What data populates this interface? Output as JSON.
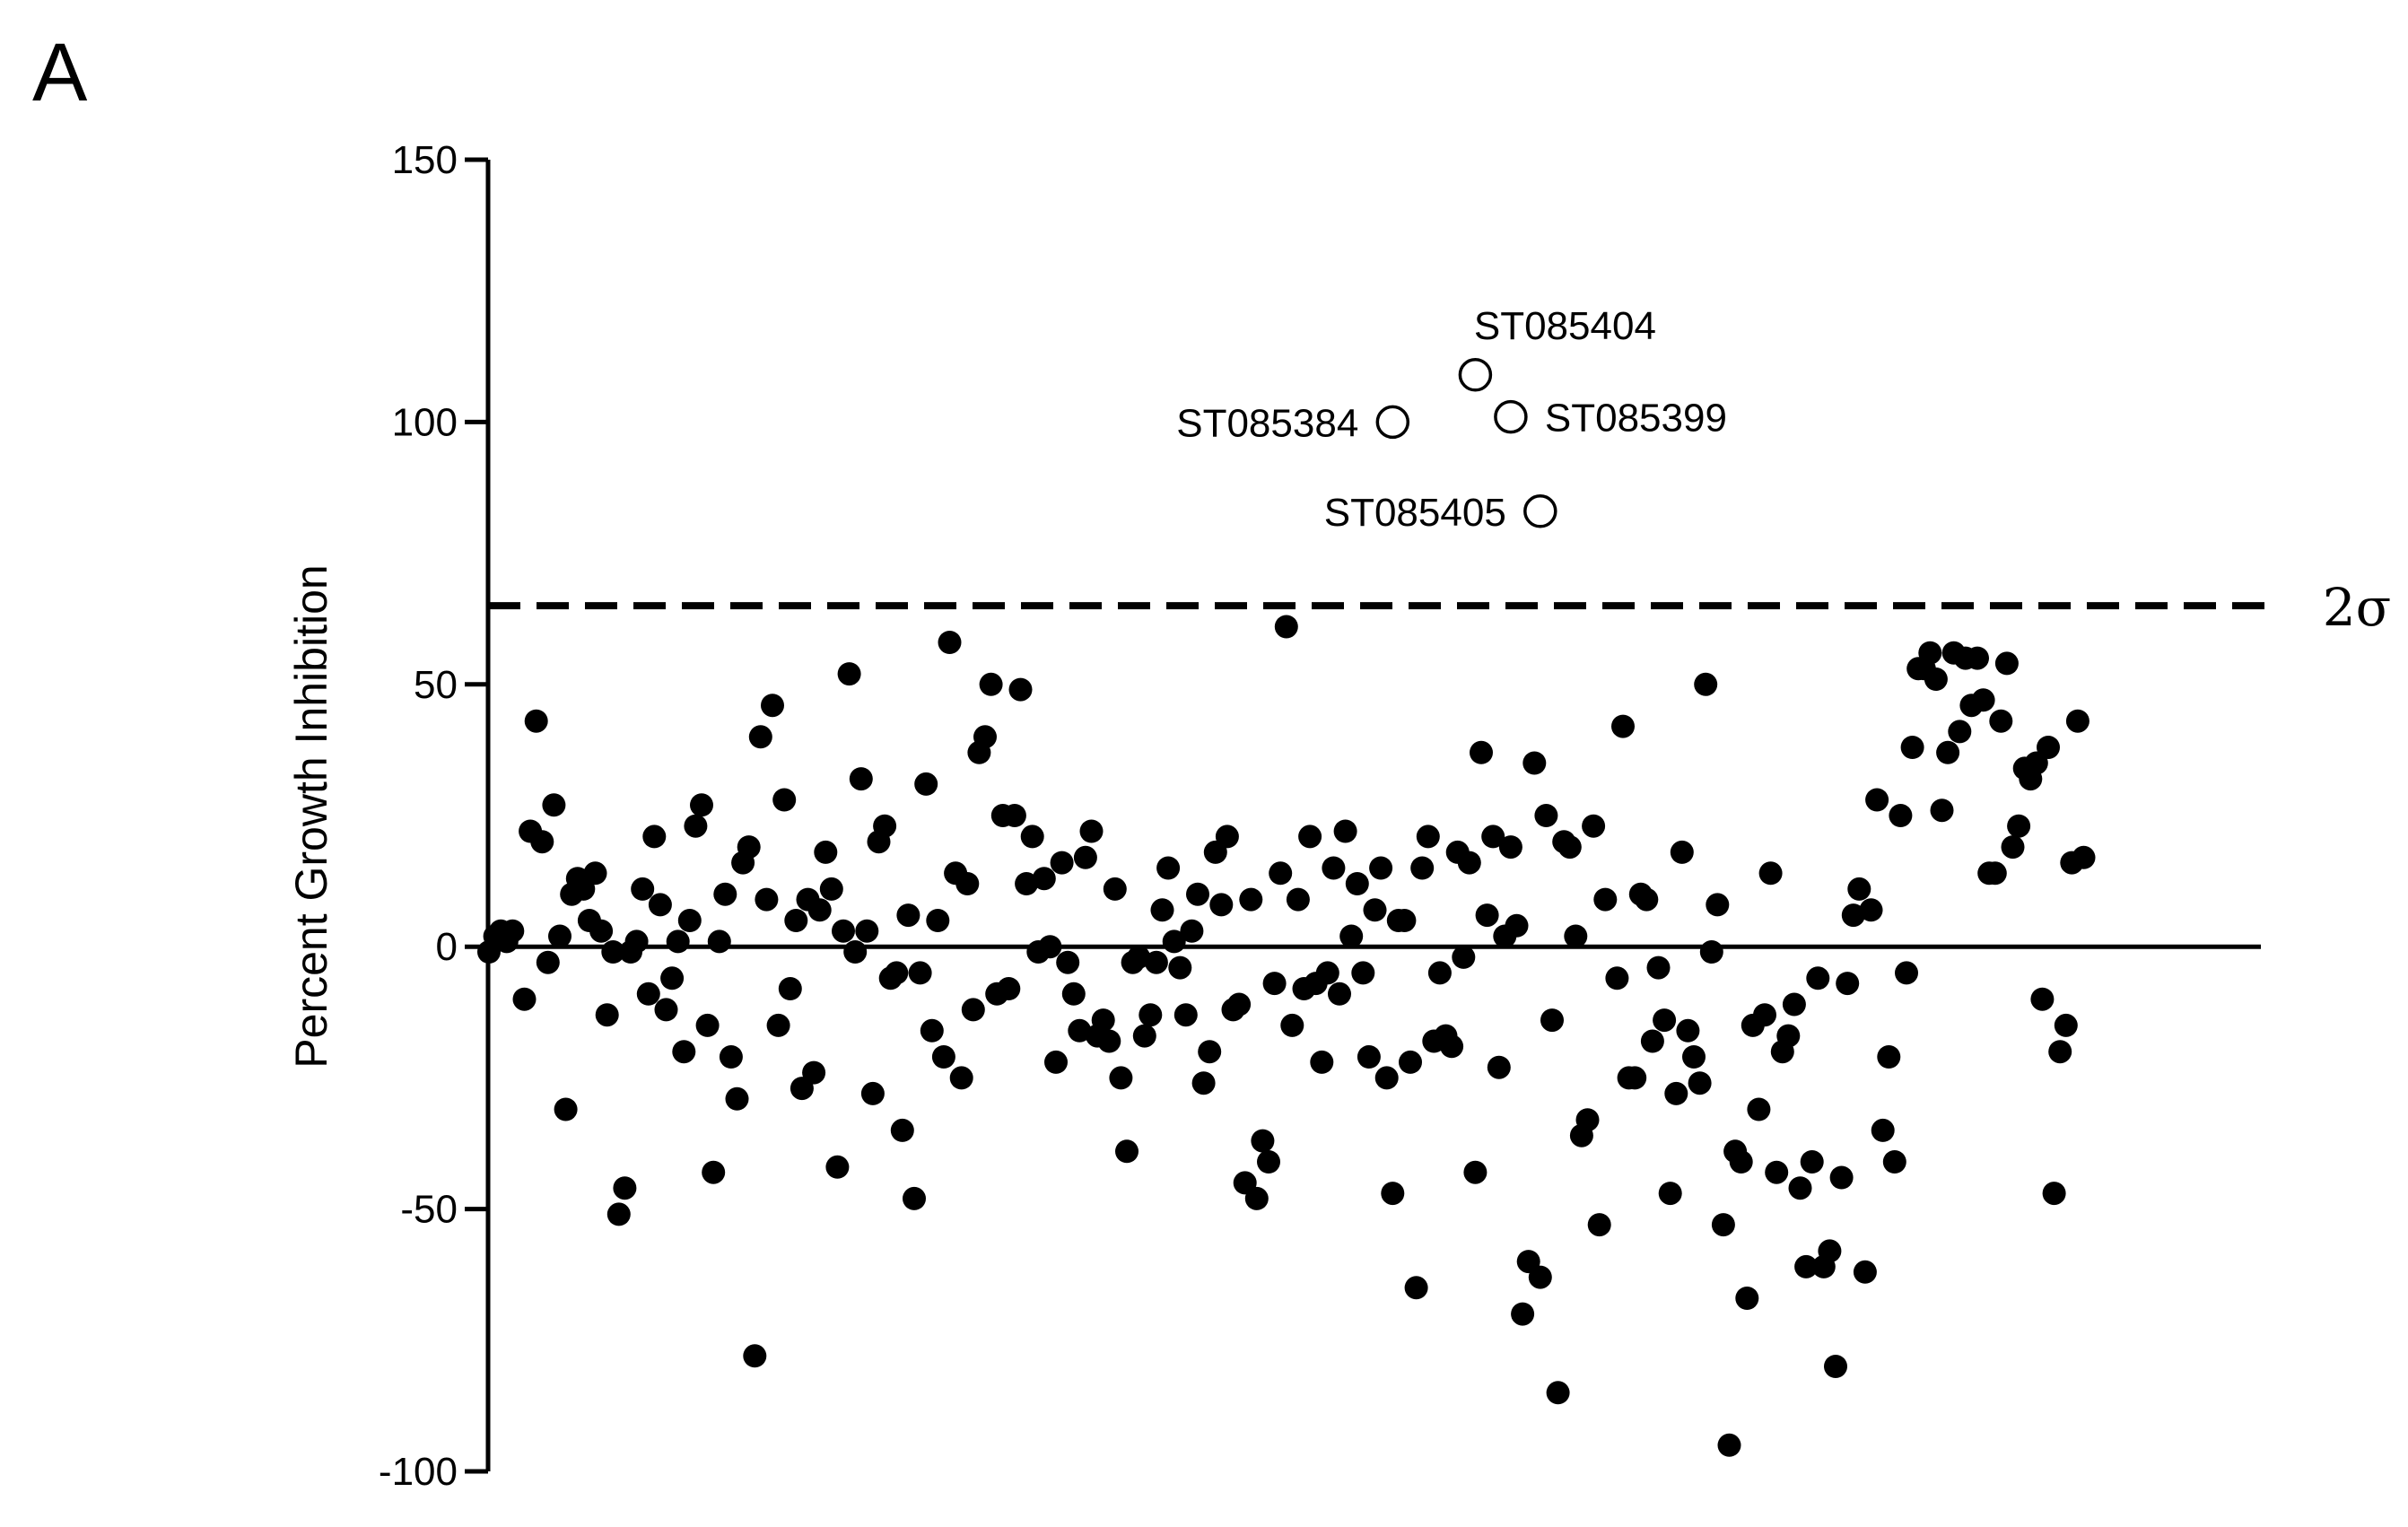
{
  "panel_label": "A",
  "chart_data": {
    "type": "scatter",
    "title": "",
    "xlabel": "",
    "ylabel": "Percent Growth Inhibition",
    "ylim": [
      -100,
      150
    ],
    "yticks": [
      -100,
      -50,
      0,
      50,
      100,
      150
    ],
    "ytick_labels": [
      "-100",
      "-50",
      "0",
      "50",
      "100",
      "150"
    ],
    "x_range": [
      0,
      300
    ],
    "grid": false,
    "legend": "none",
    "colors": {
      "points": "#000000",
      "axis": "#000000",
      "highlight_fill": "#ffffff"
    },
    "reference_lines": [
      {
        "y": 0,
        "style": "solid",
        "label": ""
      },
      {
        "y": 65,
        "style": "dashed",
        "label": "2σ"
      }
    ],
    "series": [
      {
        "name": "",
        "marker": "filled-circle",
        "points": [
          [
            0,
            -1
          ],
          [
            1,
            2
          ],
          [
            2,
            3
          ],
          [
            3,
            1
          ],
          [
            4,
            3
          ],
          [
            6,
            -10
          ],
          [
            7,
            22
          ],
          [
            8,
            43
          ],
          [
            9,
            20
          ],
          [
            10,
            -3
          ],
          [
            11,
            27
          ],
          [
            12,
            2
          ],
          [
            13,
            -31
          ],
          [
            14,
            10
          ],
          [
            15,
            13
          ],
          [
            16,
            11
          ],
          [
            17,
            5
          ],
          [
            18,
            14
          ],
          [
            19,
            3
          ],
          [
            20,
            -13
          ],
          [
            21,
            -1
          ],
          [
            22,
            -51
          ],
          [
            23,
            -46
          ],
          [
            24,
            -1
          ],
          [
            25,
            1
          ],
          [
            26,
            11
          ],
          [
            27,
            -9
          ],
          [
            28,
            21
          ],
          [
            29,
            8
          ],
          [
            30,
            -12
          ],
          [
            31,
            -6
          ],
          [
            32,
            1
          ],
          [
            33,
            -20
          ],
          [
            34,
            5
          ],
          [
            35,
            23
          ],
          [
            36,
            27
          ],
          [
            37,
            -15
          ],
          [
            38,
            -43
          ],
          [
            39,
            1
          ],
          [
            40,
            10
          ],
          [
            41,
            -21
          ],
          [
            42,
            -29
          ],
          [
            43,
            16
          ],
          [
            44,
            19
          ],
          [
            45,
            -78
          ],
          [
            46,
            40
          ],
          [
            47,
            9
          ],
          [
            48,
            46
          ],
          [
            49,
            -15
          ],
          [
            50,
            28
          ],
          [
            51,
            -8
          ],
          [
            52,
            5
          ],
          [
            53,
            -27
          ],
          [
            54,
            9
          ],
          [
            55,
            -24
          ],
          [
            56,
            7
          ],
          [
            57,
            18
          ],
          [
            58,
            11
          ],
          [
            59,
            -42
          ],
          [
            60,
            3
          ],
          [
            61,
            52
          ],
          [
            62,
            -1
          ],
          [
            63,
            32
          ],
          [
            64,
            3
          ],
          [
            65,
            -28
          ],
          [
            66,
            20
          ],
          [
            67,
            23
          ],
          [
            68,
            -6
          ],
          [
            69,
            -5
          ],
          [
            70,
            -35
          ],
          [
            71,
            6
          ],
          [
            72,
            -48
          ],
          [
            73,
            -5
          ],
          [
            74,
            31
          ],
          [
            75,
            -16
          ],
          [
            76,
            5
          ],
          [
            77,
            -21
          ],
          [
            78,
            58
          ],
          [
            79,
            14
          ],
          [
            80,
            -25
          ],
          [
            81,
            12
          ],
          [
            82,
            -12
          ],
          [
            83,
            37
          ],
          [
            84,
            40
          ],
          [
            85,
            50
          ],
          [
            86,
            -9
          ],
          [
            87,
            25
          ],
          [
            88,
            -8
          ],
          [
            89,
            25
          ],
          [
            90,
            49
          ],
          [
            91,
            12
          ],
          [
            92,
            21
          ],
          [
            93,
            -1
          ],
          [
            94,
            13
          ],
          [
            95,
            0
          ],
          [
            96,
            -22
          ],
          [
            97,
            16
          ],
          [
            98,
            -3
          ],
          [
            99,
            -9
          ],
          [
            100,
            -16
          ],
          [
            101,
            17
          ],
          [
            102,
            22
          ],
          [
            103,
            -17
          ],
          [
            104,
            -14
          ],
          [
            105,
            -18
          ],
          [
            106,
            11
          ],
          [
            107,
            -25
          ],
          [
            108,
            -39
          ],
          [
            109,
            -3
          ],
          [
            110,
            -2
          ],
          [
            111,
            -17
          ],
          [
            112,
            -13
          ],
          [
            113,
            -3
          ],
          [
            114,
            7
          ],
          [
            115,
            15
          ],
          [
            116,
            1
          ],
          [
            117,
            -4
          ],
          [
            118,
            -13
          ],
          [
            119,
            3
          ],
          [
            120,
            10
          ],
          [
            121,
            -26
          ],
          [
            122,
            -20
          ],
          [
            123,
            18
          ],
          [
            124,
            8
          ],
          [
            125,
            21
          ],
          [
            126,
            -12
          ],
          [
            127,
            -11
          ],
          [
            128,
            -45
          ],
          [
            129,
            9
          ],
          [
            130,
            -48
          ],
          [
            131,
            -37
          ],
          [
            132,
            -41
          ],
          [
            133,
            -7
          ],
          [
            134,
            14
          ],
          [
            135,
            61
          ],
          [
            136,
            -15
          ],
          [
            137,
            9
          ],
          [
            138,
            -8
          ],
          [
            139,
            21
          ],
          [
            140,
            -7
          ],
          [
            141,
            -22
          ],
          [
            142,
            -5
          ],
          [
            143,
            15
          ],
          [
            144,
            -9
          ],
          [
            145,
            22
          ],
          [
            146,
            2
          ],
          [
            147,
            12
          ],
          [
            148,
            -5
          ],
          [
            149,
            -21
          ],
          [
            150,
            7
          ],
          [
            151,
            15
          ],
          [
            152,
            -25
          ],
          [
            153,
            -47
          ],
          [
            154,
            5
          ],
          [
            155,
            5
          ],
          [
            156,
            -22
          ],
          [
            157,
            -65
          ],
          [
            158,
            15
          ],
          [
            159,
            21
          ],
          [
            160,
            -18
          ],
          [
            161,
            -5
          ],
          [
            162,
            -17
          ],
          [
            163,
            -19
          ],
          [
            164,
            18
          ],
          [
            165,
            -2
          ],
          [
            166,
            16
          ],
          [
            167,
            -43
          ],
          [
            168,
            37
          ],
          [
            169,
            6
          ],
          [
            170,
            21
          ],
          [
            171,
            -23
          ],
          [
            172,
            2
          ],
          [
            173,
            19
          ],
          [
            174,
            4
          ],
          [
            175,
            -70
          ],
          [
            176,
            -60
          ],
          [
            177,
            35
          ],
          [
            178,
            -63
          ],
          [
            179,
            25
          ],
          [
            180,
            -14
          ],
          [
            181,
            -85
          ],
          [
            182,
            20
          ],
          [
            183,
            19
          ],
          [
            184,
            2
          ],
          [
            185,
            -36
          ],
          [
            186,
            -33
          ],
          [
            187,
            23
          ],
          [
            188,
            -53
          ],
          [
            189,
            9
          ],
          [
            191,
            -6
          ],
          [
            192,
            42
          ],
          [
            193,
            -25
          ],
          [
            194,
            -25
          ],
          [
            195,
            10
          ],
          [
            196,
            9
          ],
          [
            197,
            -18
          ],
          [
            198,
            -4
          ],
          [
            199,
            -14
          ],
          [
            200,
            -47
          ],
          [
            201,
            -28
          ],
          [
            202,
            18
          ],
          [
            203,
            -16
          ],
          [
            204,
            -21
          ],
          [
            205,
            -26
          ],
          [
            206,
            50
          ],
          [
            207,
            -1
          ],
          [
            208,
            8
          ],
          [
            209,
            -53
          ],
          [
            210,
            -95
          ],
          [
            211,
            -39
          ],
          [
            212,
            -41
          ],
          [
            213,
            -67
          ],
          [
            214,
            -15
          ],
          [
            215,
            -31
          ],
          [
            216,
            -13
          ],
          [
            217,
            14
          ],
          [
            218,
            -43
          ],
          [
            219,
            -20
          ],
          [
            220,
            -17
          ],
          [
            221,
            -11
          ],
          [
            222,
            -46
          ],
          [
            223,
            -61
          ],
          [
            224,
            -41
          ],
          [
            225,
            -6
          ],
          [
            226,
            -61
          ],
          [
            227,
            -58
          ],
          [
            228,
            -80
          ],
          [
            229,
            -44
          ],
          [
            230,
            -7
          ],
          [
            231,
            6
          ],
          [
            232,
            11
          ],
          [
            233,
            -62
          ],
          [
            234,
            7
          ],
          [
            235,
            28
          ],
          [
            236,
            -35
          ],
          [
            237,
            -21
          ],
          [
            238,
            -41
          ],
          [
            239,
            25
          ],
          [
            240,
            -5
          ],
          [
            241,
            38
          ],
          [
            242,
            53
          ],
          [
            243,
            53
          ],
          [
            244,
            56
          ],
          [
            245,
            51
          ],
          [
            246,
            26
          ],
          [
            247,
            37
          ],
          [
            248,
            56
          ],
          [
            249,
            41
          ],
          [
            250,
            55
          ],
          [
            251,
            46
          ],
          [
            252,
            55
          ],
          [
            253,
            47
          ],
          [
            254,
            14
          ],
          [
            255,
            14
          ],
          [
            256,
            43
          ],
          [
            257,
            54
          ],
          [
            258,
            19
          ],
          [
            259,
            23
          ],
          [
            260,
            34
          ],
          [
            261,
            32
          ],
          [
            262,
            35
          ],
          [
            263,
            -10
          ],
          [
            264,
            38
          ],
          [
            265,
            -47
          ],
          [
            266,
            -20
          ],
          [
            267,
            -15
          ],
          [
            268,
            16
          ],
          [
            269,
            43
          ],
          [
            270,
            17
          ]
        ]
      },
      {
        "name": "",
        "marker": "open-circle",
        "points": [
          {
            "x": 153,
            "y": 100,
            "label": "ST085384",
            "label_side": "left"
          },
          {
            "x": 167,
            "y": 109,
            "label": "ST085404",
            "label_side": "above"
          },
          {
            "x": 173,
            "y": 101,
            "label": "ST085399",
            "label_side": "right"
          },
          {
            "x": 178,
            "y": 83,
            "label": "ST085405",
            "label_side": "left"
          }
        ]
      }
    ]
  }
}
